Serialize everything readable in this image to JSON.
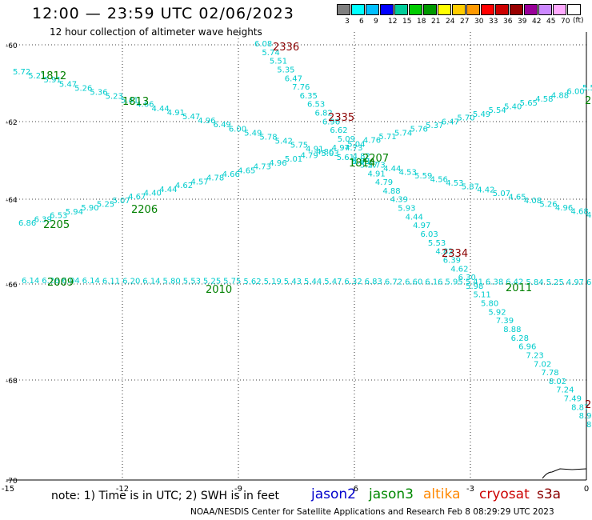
{
  "header": {
    "title": "12:00 — 23:59 UTC 02/06/2023",
    "subtitle": "12 hour collection of altimeter wave heights",
    "unit": "(ft)"
  },
  "colorbar": {
    "colors": [
      "#808080",
      "#00ffff",
      "#00bfff",
      "#0000ff",
      "#00cc99",
      "#00cc00",
      "#009900",
      "#ffff00",
      "#ffcc00",
      "#ff9900",
      "#ff0000",
      "#cc0000",
      "#990000",
      "#990099",
      "#cc88ff",
      "#ffaaff",
      "#ffffff"
    ],
    "labels": [
      "3",
      "6",
      "9",
      "12",
      "15",
      "18",
      "21",
      "24",
      "27",
      "30",
      "33",
      "36",
      "39",
      "42",
      "45",
      "70"
    ]
  },
  "axes": {
    "x_ticks": [
      "-15",
      "-12",
      "-9",
      "-6",
      "-3",
      "0"
    ],
    "y_ticks": [
      "-60",
      "-62",
      "-64",
      "-66",
      "-68",
      "-70"
    ]
  },
  "tracks": [
    {
      "time": "1812",
      "values": [
        "5.72",
        "5.21",
        "5.91",
        "5.47",
        "5.26",
        "5.36",
        "5.23",
        "5.41",
        "4.66",
        "4.44",
        "4.91",
        "5.47",
        "4.96",
        "6.49",
        "6.00",
        "5.49",
        "5.78",
        "5.42",
        "5.75",
        "4.91",
        "5.03",
        "5.61",
        "4.98"
      ]
    },
    {
      "time": "2336",
      "values": [
        "6.08",
        "5.74",
        "5.51",
        "5.35",
        "6.47",
        "7.76",
        "6.35",
        "6.53",
        "6.82",
        "6.96",
        "6.62",
        "5.09",
        "4.73",
        "4.82",
        "5.27",
        "4.91",
        "4.79",
        "4.88",
        "4.39",
        "5.93",
        "4.44",
        "4.97",
        "6.03",
        "5.53",
        "4.82",
        "6.39",
        "4.62",
        "6.30",
        "5.98",
        "5.11",
        "5.80",
        "5.92",
        "7.39",
        "8.88",
        "6.28",
        "6.96",
        "7.23",
        "7.02",
        "7.78",
        "8.02",
        "7.24",
        "7.49",
        "8.87",
        "8.98",
        "8.6"
      ]
    },
    {
      "time": "2205",
      "values": [
        "6.86",
        "6.39",
        "6.53",
        "5.94",
        "5.90",
        "5.25",
        "5.07",
        "4.67",
        "4.40",
        "4.44",
        "4.62",
        "4.57",
        "4.78",
        "4.66",
        "4.65",
        "4.73",
        "4.96",
        "5.01",
        "4.79",
        "4.86",
        "4.97",
        "5.04",
        "4.76",
        "5.71",
        "5.74",
        "5.76",
        "5.37",
        "6.47",
        "5.70",
        "5.49",
        "5.54",
        "5.40",
        "5.65",
        "4.58",
        "4.88",
        "6.00",
        "5.5"
      ]
    },
    {
      "time": "1814",
      "values": [
        "5.69",
        "5.73",
        "4.44",
        "4.53",
        "5.59",
        "4.56",
        "4.53",
        "5.87",
        "4.42",
        "5.07",
        "4.65",
        "4.08",
        "5.26",
        "4.96",
        "4.68",
        "4.5"
      ]
    },
    {
      "time": "2009",
      "values": [
        "6.14",
        "6.26",
        "6.04",
        "6.14",
        "6.11",
        "6.20",
        "6.14",
        "5.80",
        "5.53",
        "5.25",
        "5.75",
        "5.62",
        "5.19",
        "5.43",
        "5.44",
        "5.47",
        "6.32",
        "6.83",
        "6.72",
        "6.60",
        "6.16",
        "5.95",
        "5.41",
        "6.38",
        "6.42",
        "5.84",
        "5.25",
        "4.97",
        "6.1"
      ]
    }
  ],
  "track_labels": [
    {
      "text": "1812",
      "color": "#008000"
    },
    {
      "text": "1813",
      "color": "#008000"
    },
    {
      "text": "2336",
      "color": "#8b0000"
    },
    {
      "text": "2335",
      "color": "#8b0000"
    },
    {
      "text": "2207",
      "color": "#008000"
    },
    {
      "text": "1814",
      "color": "#008000"
    },
    {
      "text": "2206",
      "color": "#008000"
    },
    {
      "text": "2205",
      "color": "#008000"
    },
    {
      "text": "2334",
      "color": "#8b0000"
    },
    {
      "text": "2009",
      "color": "#008000"
    },
    {
      "text": "2010",
      "color": "#008000"
    },
    {
      "text": "2011",
      "color": "#008000"
    },
    {
      "text": "2",
      "color": "#008000"
    },
    {
      "text": "2",
      "color": "#8b0000"
    }
  ],
  "footer": {
    "note": "note: 1) Time is in UTC; 2) SWH is in feet",
    "satellites": [
      {
        "name": "jason2",
        "color": "#0000cc"
      },
      {
        "name": "jason3",
        "color": "#008800"
      },
      {
        "name": "altika",
        "color": "#ff8800"
      },
      {
        "name": "cryosat",
        "color": "#cc0000"
      },
      {
        "name": "s3a",
        "color": "#8b0000"
      }
    ],
    "credit": "NOAA/NESDIS Center for Satellite Applications and Research    Feb  8 08:29:29 UTC 2023"
  }
}
